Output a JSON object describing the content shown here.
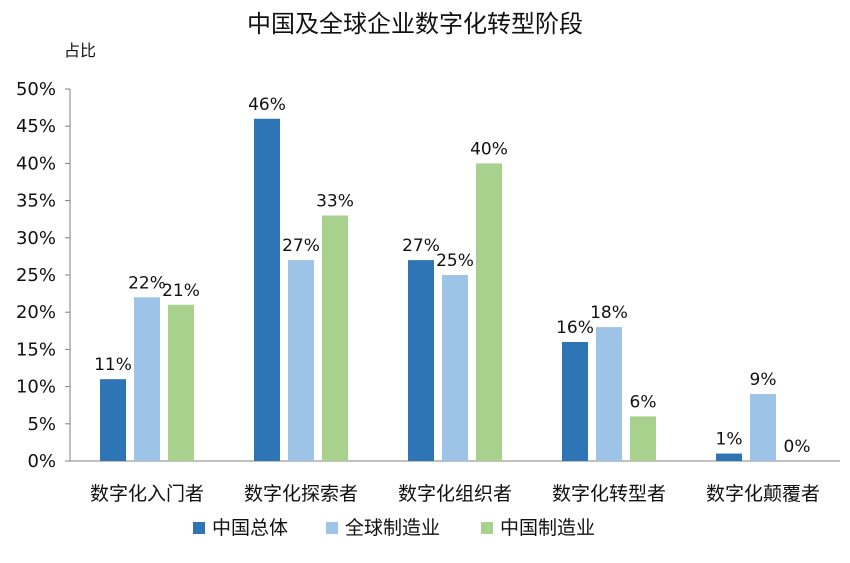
{
  "chart_data": {
    "type": "bar",
    "title": "中国及全球企业数字化转型阶段",
    "ylabel": "占比",
    "xlabel": "",
    "ylim": [
      0,
      50
    ],
    "y_ticks": [
      "0%",
      "5%",
      "10%",
      "15%",
      "20%",
      "25%",
      "30%",
      "35%",
      "40%",
      "45%",
      "50%"
    ],
    "categories": [
      "数字化入门者",
      "数字化探索者",
      "数字化组织者",
      "数字化转型者",
      "数字化颠覆者"
    ],
    "series": [
      {
        "name": "中国总体",
        "color": "#2E75B6",
        "values": [
          11,
          46,
          27,
          16,
          1
        ],
        "labels": [
          "11%",
          "46%",
          "27%",
          "16%",
          "1%"
        ]
      },
      {
        "name": "全球制造业",
        "color": "#9DC3E6",
        "values": [
          22,
          27,
          25,
          18,
          9
        ],
        "labels": [
          "22%",
          "27%",
          "25%",
          "18%",
          "9%"
        ]
      },
      {
        "name": "中国制造业",
        "color": "#A9D18E",
        "values": [
          21,
          33,
          40,
          6,
          0
        ],
        "labels": [
          "21%",
          "33%",
          "40%",
          "6%",
          "0%"
        ]
      }
    ],
    "grid": false,
    "legend_position": "bottom"
  }
}
